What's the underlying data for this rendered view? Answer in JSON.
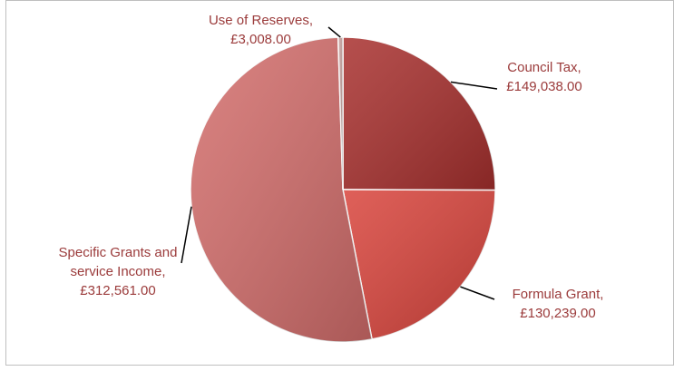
{
  "chart_data": {
    "type": "pie",
    "categories": [
      "Council Tax,",
      "Formula Grant,",
      "Specific Grants and service Income,",
      "Use of Reserves,"
    ],
    "values": [
      149038,
      130239,
      312561,
      3008
    ],
    "value_labels": [
      "£149,038.00",
      "£130,239.00",
      "£312,561.00",
      "£3,008.00"
    ],
    "colors": [
      "#a8302e",
      "#d9443c",
      "#d46e6c",
      "#c9a3a0"
    ]
  }
}
